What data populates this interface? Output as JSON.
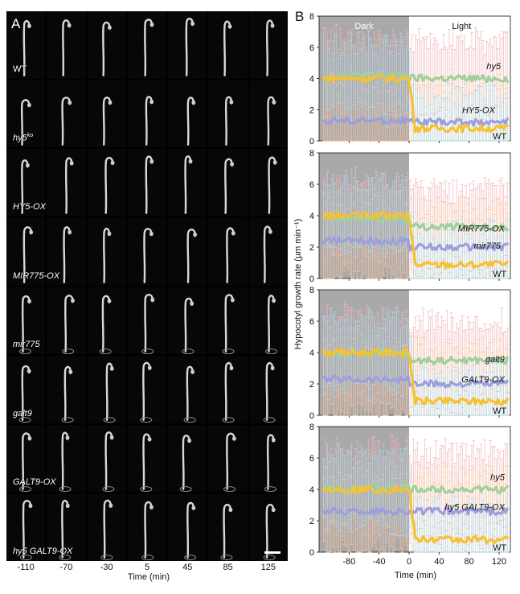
{
  "panel_a": {
    "letter": "A",
    "rows": [
      "WT",
      "hy5",
      "HY5-OX",
      "MIR775-OX",
      "mir775",
      "galt9",
      "GALT9-OX",
      "hy5 GALT9-OX"
    ],
    "row_superscripts": [
      "",
      "ko",
      "",
      "",
      "",
      "",
      "",
      ""
    ],
    "time_points": [
      "-110",
      "-70",
      "-30",
      "5",
      "45",
      "85",
      "125"
    ],
    "time_axis_label": "Time (min)"
  },
  "panel_b": {
    "letter": "B",
    "dark_label": "Dark",
    "light_label": "Light",
    "ylabel": "Hypocotyl growth rate (µm min⁻¹)",
    "xlabel": "Time (min)",
    "colors": {
      "yellow": "#f7c12f",
      "green": "#9fd19c",
      "purple": "#9d9fdc",
      "dark_shade": "#a9a9a9",
      "err_orange": "#f7c6a1",
      "err_pink": "#f2b3b8",
      "err_blue": "#aed8ea"
    }
  },
  "chart_data": [
    {
      "type": "line",
      "xlim": [
        -120,
        135
      ],
      "ylim": [
        0,
        8
      ],
      "x_ticks": [
        -80,
        -40,
        0,
        40,
        80,
        120
      ],
      "y_ticks": [
        0,
        2,
        4,
        6,
        8
      ],
      "dark_period": [
        -120,
        0
      ],
      "series": [
        {
          "name": "hy5",
          "color": "#9fd19c",
          "dark_mean": 4.2,
          "light_mean": 4.0
        },
        {
          "name": "HY5-OX",
          "color": "#9d9fdc",
          "dark_mean": 1.3,
          "light_mean": 1.2
        },
        {
          "name": "WT",
          "color": "#f7c12f",
          "dark_mean": 4.0,
          "light_mean": 0.8
        }
      ]
    },
    {
      "type": "line",
      "xlim": [
        -120,
        135
      ],
      "ylim": [
        0,
        8
      ],
      "x_ticks": [
        -80,
        -40,
        0,
        40,
        80,
        120
      ],
      "y_ticks": [
        0,
        2,
        4,
        6,
        8
      ],
      "dark_period": [
        -120,
        0
      ],
      "series": [
        {
          "name": "MIR775-OX",
          "color": "#9fd19c",
          "dark_mean": 3.8,
          "light_mean": 3.3
        },
        {
          "name": "mir775",
          "color": "#9d9fdc",
          "dark_mean": 2.4,
          "light_mean": 2.0
        },
        {
          "name": "WT",
          "color": "#f7c12f",
          "dark_mean": 4.0,
          "light_mean": 0.9
        }
      ]
    },
    {
      "type": "line",
      "xlim": [
        -120,
        135
      ],
      "ylim": [
        0,
        8
      ],
      "x_ticks": [
        -80,
        -40,
        0,
        40,
        80,
        120
      ],
      "y_ticks": [
        0,
        2,
        4,
        6,
        8
      ],
      "dark_period": [
        -120,
        0
      ],
      "series": [
        {
          "name": "galt9",
          "color": "#9fd19c",
          "dark_mean": 3.9,
          "light_mean": 3.5
        },
        {
          "name": "GALT9-OX",
          "color": "#9d9fdc",
          "dark_mean": 2.3,
          "light_mean": 2.0
        },
        {
          "name": "WT",
          "color": "#f7c12f",
          "dark_mean": 4.0,
          "light_mean": 0.9
        }
      ]
    },
    {
      "type": "line",
      "xlim": [
        -120,
        135
      ],
      "ylim": [
        0,
        8
      ],
      "x_ticks": [
        -80,
        -40,
        0,
        40,
        80,
        120
      ],
      "y_ticks": [
        0,
        2,
        4,
        6,
        8
      ],
      "dark_period": [
        -120,
        0
      ],
      "series": [
        {
          "name": "hy5",
          "color": "#9fd19c",
          "dark_mean": 4.1,
          "light_mean": 4.0
        },
        {
          "name": "hy5 GALT9-OX",
          "color": "#9d9fdc",
          "dark_mean": 2.6,
          "light_mean": 2.6
        },
        {
          "name": "WT",
          "color": "#f7c12f",
          "dark_mean": 4.0,
          "light_mean": 0.8
        }
      ]
    }
  ]
}
